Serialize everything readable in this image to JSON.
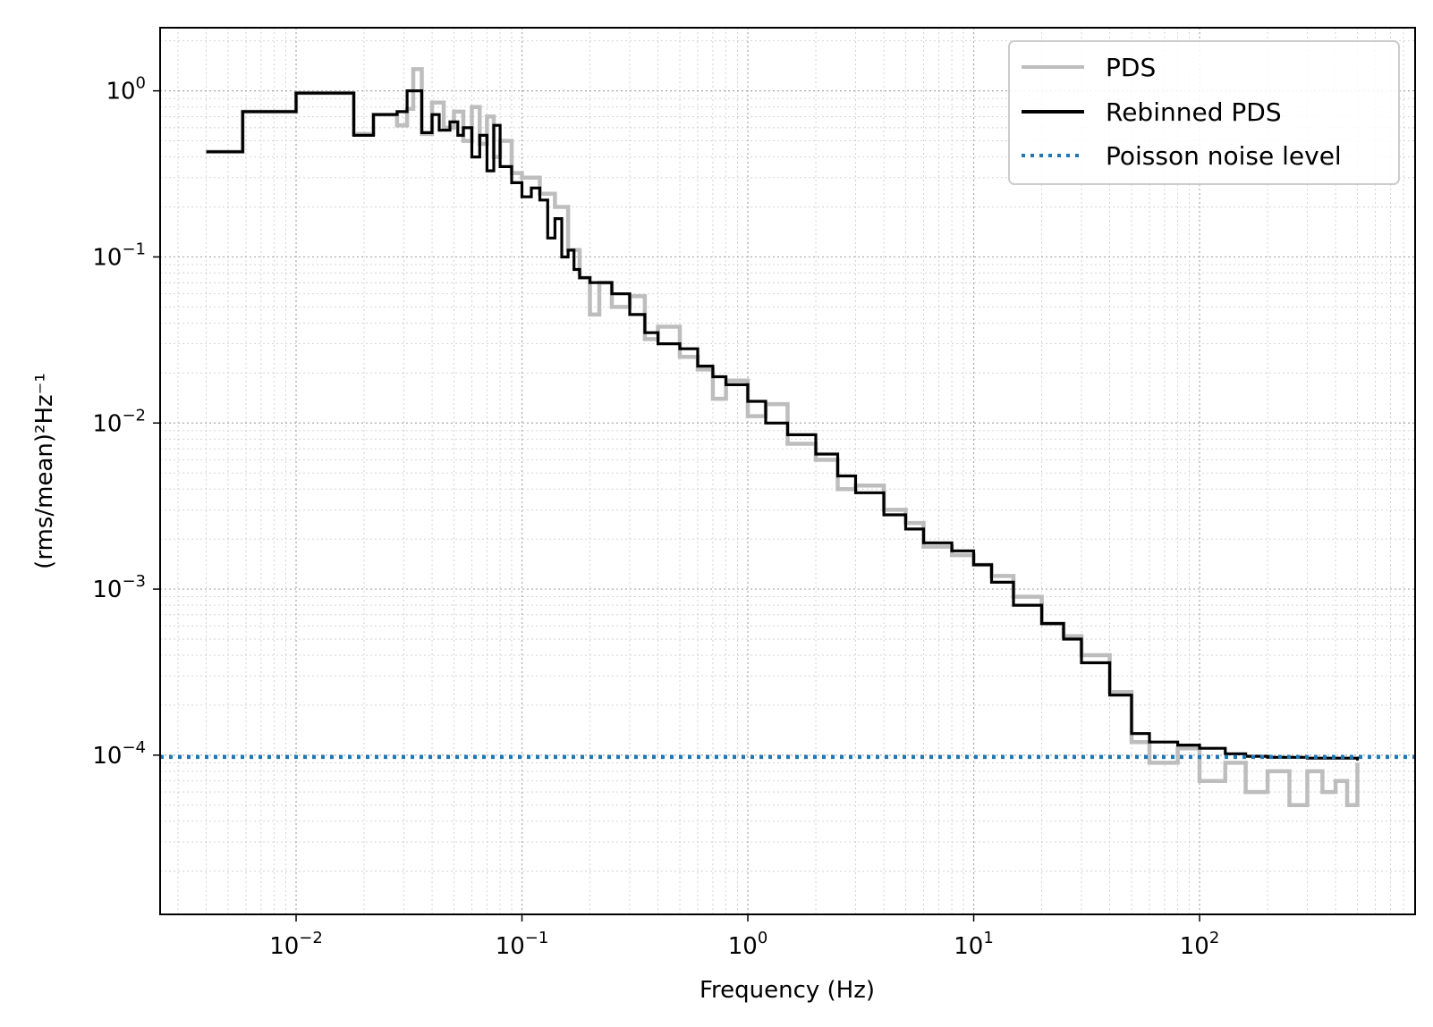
{
  "chart_data": {
    "type": "line",
    "title": "",
    "xlabel": "Frequency (Hz)",
    "ylabel": "(rms/mean)²Hz⁻¹",
    "xscale": "log",
    "yscale": "log",
    "xlim": [
      0.0025,
      900
    ],
    "ylim": [
      1.1e-05,
      2.4
    ],
    "grid": "major and minor, dotted",
    "legend_position": "top-right",
    "x_ticks": [
      {
        "base": "10",
        "exp": "−2",
        "value": 0.01
      },
      {
        "base": "10",
        "exp": "−1",
        "value": 0.1
      },
      {
        "base": "10",
        "exp": "0",
        "value": 1
      },
      {
        "base": "10",
        "exp": "1",
        "value": 10
      },
      {
        "base": "10",
        "exp": "2",
        "value": 100
      }
    ],
    "y_ticks": [
      {
        "base": "10",
        "exp": "0",
        "value": 1
      },
      {
        "base": "10",
        "exp": "−1",
        "value": 0.1
      },
      {
        "base": "10",
        "exp": "−2",
        "value": 0.01
      },
      {
        "base": "10",
        "exp": "−3",
        "value": 0.001
      },
      {
        "base": "10",
        "exp": "−4",
        "value": 0.0001
      }
    ],
    "series": [
      {
        "name": "PDS",
        "color": "#bdbdbd",
        "style": "steps",
        "x": [
          0.004,
          0.0058,
          0.01,
          0.018,
          0.022,
          0.028,
          0.031,
          0.033,
          0.036,
          0.04,
          0.045,
          0.05,
          0.055,
          0.06,
          0.065,
          0.07,
          0.075,
          0.08,
          0.09,
          0.1,
          0.12,
          0.14,
          0.16,
          0.18,
          0.2,
          0.22,
          0.25,
          0.3,
          0.35,
          0.4,
          0.5,
          0.6,
          0.7,
          0.8,
          1.0,
          1.2,
          1.5,
          2.0,
          2.5,
          3.0,
          4.0,
          5.0,
          6.0,
          8.0,
          10,
          12,
          15,
          20,
          25,
          30,
          40,
          50,
          60,
          80,
          100,
          130,
          160,
          200,
          250,
          300,
          350,
          400,
          450,
          500
        ],
        "y": [
          0.43,
          0.75,
          0.97,
          0.55,
          0.72,
          0.62,
          0.78,
          1.35,
          0.55,
          0.85,
          0.6,
          0.75,
          0.5,
          0.8,
          0.48,
          0.7,
          0.4,
          0.5,
          0.32,
          0.3,
          0.24,
          0.2,
          0.11,
          0.075,
          0.045,
          0.07,
          0.05,
          0.058,
          0.032,
          0.038,
          0.025,
          0.021,
          0.014,
          0.018,
          0.011,
          0.013,
          0.0075,
          0.006,
          0.004,
          0.0042,
          0.003,
          0.0025,
          0.0018,
          0.0016,
          0.0014,
          0.0012,
          0.0009,
          0.00062,
          0.00052,
          0.0004,
          0.00024,
          0.00012,
          9e-05,
          0.00011,
          7e-05,
          9e-05,
          6e-05,
          8e-05,
          5e-05,
          8e-05,
          6e-05,
          7e-05,
          5e-05,
          9e-05
        ]
      },
      {
        "name": "Rebinned PDS",
        "color": "#000000",
        "style": "steps",
        "x": [
          0.004,
          0.0058,
          0.01,
          0.018,
          0.022,
          0.028,
          0.031,
          0.036,
          0.04,
          0.043,
          0.048,
          0.052,
          0.055,
          0.06,
          0.065,
          0.07,
          0.075,
          0.08,
          0.09,
          0.1,
          0.11,
          0.12,
          0.13,
          0.14,
          0.15,
          0.16,
          0.17,
          0.18,
          0.2,
          0.25,
          0.3,
          0.35,
          0.4,
          0.5,
          0.6,
          0.7,
          0.8,
          1.0,
          1.2,
          1.5,
          2.0,
          2.5,
          3.0,
          4.0,
          5.0,
          6.0,
          8.0,
          10,
          12,
          15,
          20,
          25,
          30,
          40,
          50,
          60,
          80,
          100,
          130,
          160,
          200,
          300,
          500
        ],
        "y": [
          0.43,
          0.75,
          0.97,
          0.54,
          0.72,
          0.75,
          1.0,
          0.56,
          0.72,
          0.58,
          0.65,
          0.54,
          0.6,
          0.4,
          0.54,
          0.33,
          0.62,
          0.35,
          0.28,
          0.23,
          0.26,
          0.22,
          0.13,
          0.17,
          0.1,
          0.11,
          0.084,
          0.075,
          0.07,
          0.06,
          0.045,
          0.035,
          0.03,
          0.028,
          0.022,
          0.019,
          0.017,
          0.0135,
          0.01,
          0.0085,
          0.0065,
          0.0048,
          0.0038,
          0.0028,
          0.0023,
          0.0019,
          0.0017,
          0.0014,
          0.0011,
          0.0008,
          0.00062,
          0.0005,
          0.00036,
          0.00023,
          0.000135,
          0.00012,
          0.000115,
          0.00011,
          0.000102,
          9.85e-05,
          9.7e-05,
          9.6e-05,
          9.3e-05
        ]
      },
      {
        "name": "Poisson noise level",
        "color": "#1f77b4",
        "style": "dotted",
        "y_constant": 9.75e-05
      }
    ]
  }
}
